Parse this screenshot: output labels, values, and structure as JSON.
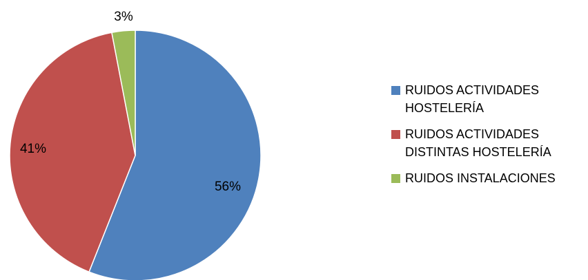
{
  "chart_data": {
    "type": "pie",
    "title": "",
    "start_angle_deg": 0,
    "direction": "clockwise",
    "slices": [
      {
        "label": "RUIDOS ACTIVIDADES HOSTELERÍA",
        "legend_lines": [
          "RUIDOS ACTIVIDADES",
          "HOSTELERÍA"
        ],
        "value": 56,
        "value_label": "56%",
        "color": "#4F81BD"
      },
      {
        "label": "RUIDOS ACTIVIDADES DISTINTAS HOSTELERÍA",
        "legend_lines": [
          "RUIDOS ACTIVIDADES",
          "DISTINTAS HOSTELERÍA"
        ],
        "value": 41,
        "value_label": "41%",
        "color": "#C0504D"
      },
      {
        "label": "RUIDOS INSTALACIONES",
        "legend_lines": [
          "RUIDOS INSTALACIONES"
        ],
        "value": 3,
        "value_label": "3%",
        "color": "#9BBB59"
      }
    ],
    "legend_position": "right"
  }
}
